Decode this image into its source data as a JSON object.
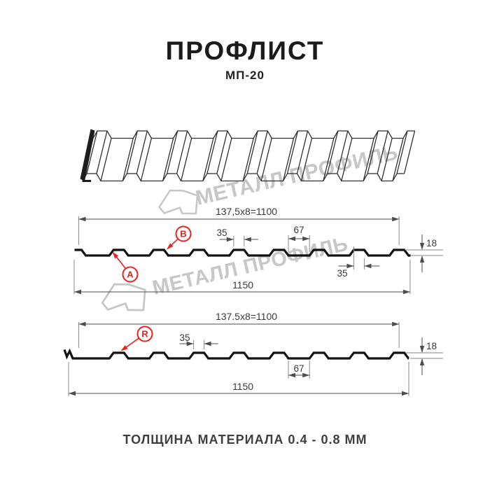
{
  "header": {
    "title": "ПРОФЛИСТ",
    "subtitle": "МП-20"
  },
  "watermark": {
    "text": "МЕТАЛЛ ПРОФИЛЬ",
    "logo": "metal-profil-logo",
    "color": "#c7c7c7"
  },
  "footer": {
    "text": "ТОЛЩИНА МАТЕРИАЛА 0.4 - 0.8 ММ"
  },
  "colors": {
    "accent_red": "#e8221e",
    "line_black": "#111111",
    "dim_line": "#4d4d4d",
    "ext_line": "#8a8a8a",
    "dim_text": "#3a3a3a",
    "sheet_line": "#2f2f2f"
  },
  "profiles": [
    {
      "id": "front-side",
      "markers": [
        {
          "label": "A"
        },
        {
          "label": "B"
        }
      ],
      "dims": {
        "coverage": "137,5x8=1100",
        "crest_top": "35",
        "rib_base": "67",
        "crest_top_bottom": "35",
        "height": "18",
        "total": "1150"
      }
    },
    {
      "id": "reverse-side",
      "markers": [
        {
          "label": "R"
        }
      ],
      "dims": {
        "coverage": "137.5x8=1100",
        "crest_top": "35",
        "rib_base": "67",
        "height": "18",
        "total": "1150"
      }
    }
  ]
}
